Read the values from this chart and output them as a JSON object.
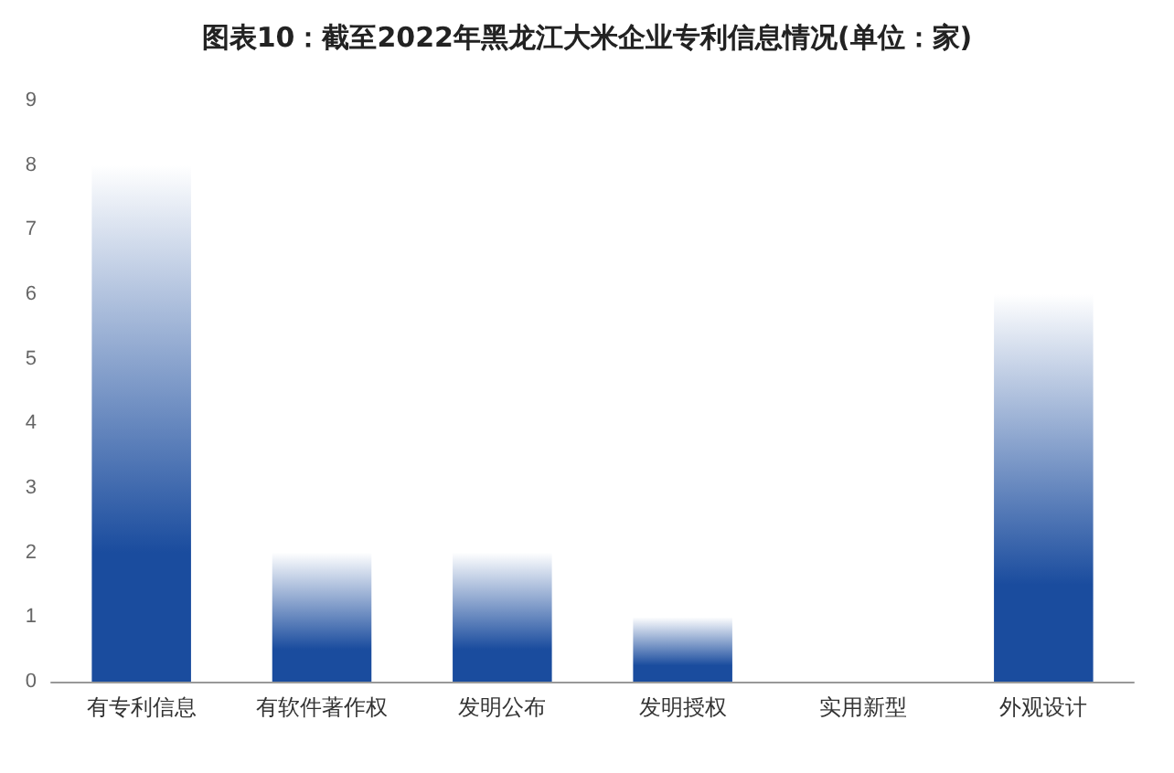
{
  "chart_data": {
    "type": "bar",
    "title": "图表10：截至2022年黑龙江大米企业专利信息情况(单位：家)",
    "categories": [
      "有专利信息",
      "有软件著作权",
      "发明公布",
      "发明授权",
      "实用新型",
      "外观设计"
    ],
    "values": [
      8,
      2,
      2,
      1,
      0,
      6
    ],
    "color": "#1a4c9e",
    "ylim": [
      0,
      9
    ],
    "yticks": [
      0,
      1,
      2,
      3,
      4,
      5,
      6,
      7,
      8,
      9
    ],
    "grid": false
  }
}
